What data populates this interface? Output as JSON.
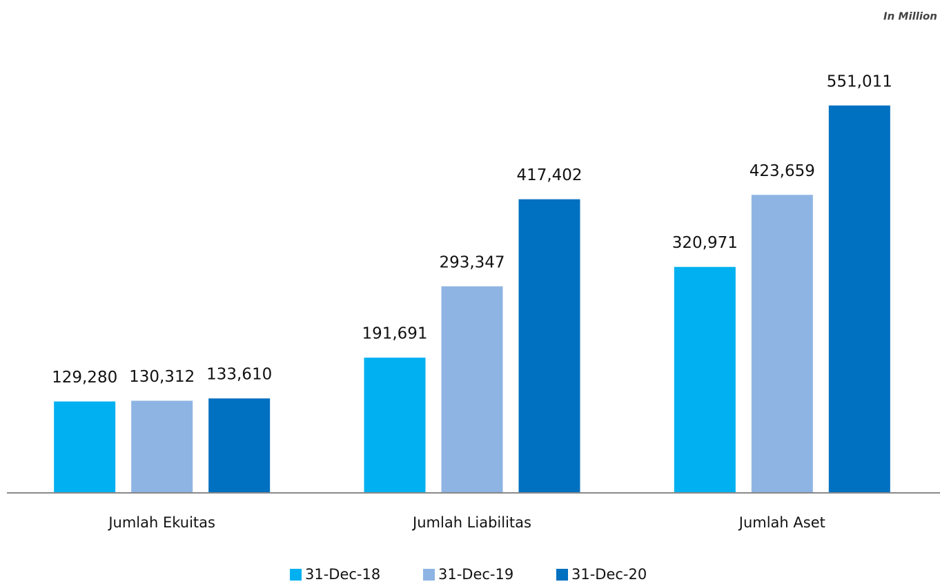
{
  "chart_data": {
    "type": "bar",
    "subtitle": "In Million",
    "categories": [
      "Jumlah Ekuitas",
      "Jumlah Liabilitas",
      "Jumlah Aset"
    ],
    "series": [
      {
        "name": "31-Dec-18",
        "color": "#00b0f0",
        "values": [
          129280,
          191691,
          320971
        ],
        "value_labels": [
          "129,280",
          "191,691",
          "320,971"
        ]
      },
      {
        "name": "31-Dec-19",
        "color": "#8eb4e3",
        "values": [
          130312,
          293347,
          423659
        ],
        "value_labels": [
          "130,312",
          "293,347",
          "423,659"
        ]
      },
      {
        "name": "31-Dec-20",
        "color": "#0070c0",
        "values": [
          133610,
          417402,
          551011
        ],
        "value_labels": [
          "133,610",
          "417,402",
          "551,011"
        ]
      }
    ],
    "ylim": [
      0,
      600000
    ],
    "legend": "bottom"
  }
}
